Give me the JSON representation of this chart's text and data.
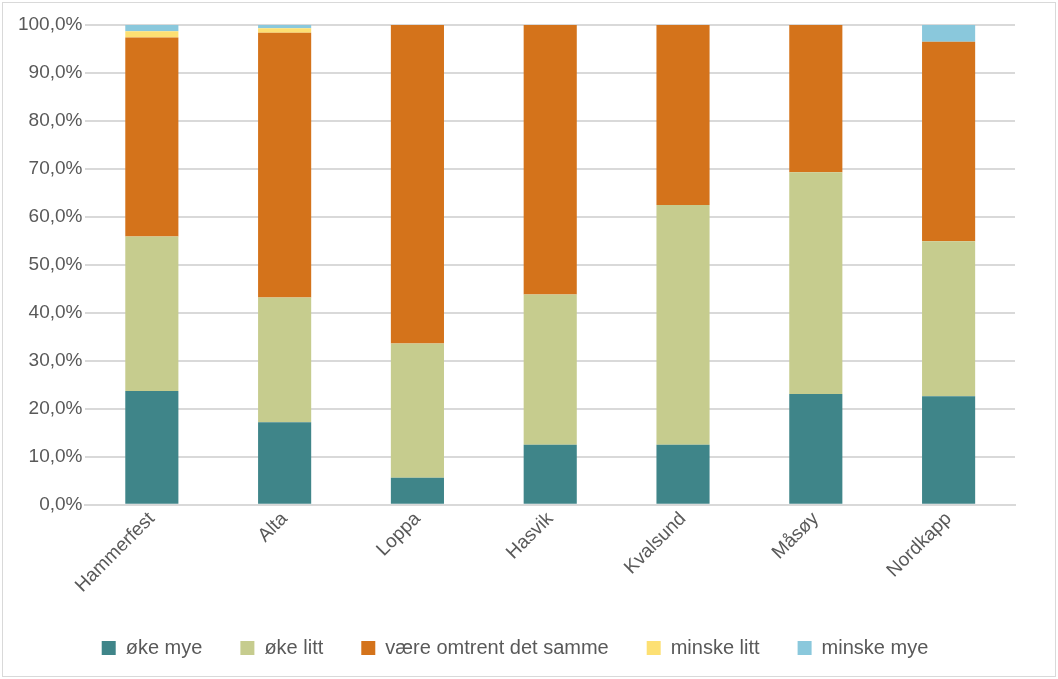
{
  "chart_data": {
    "type": "bar",
    "stacked": true,
    "categories": [
      "Hammerfest",
      "Alta",
      "Loppa",
      "Hasvik",
      "Kvalsund",
      "Måsøy",
      "Nordkapp"
    ],
    "series": [
      {
        "name": "øke mye",
        "color": "#3f8589",
        "values": [
          23.7,
          17.2,
          5.6,
          12.5,
          12.5,
          23.1,
          22.6
        ]
      },
      {
        "name": "øke litt",
        "color": "#c6cc8e",
        "values": [
          32.2,
          26.0,
          28.0,
          31.3,
          50.0,
          46.2,
          32.3
        ]
      },
      {
        "name": "være omtrent det samme",
        "color": "#d4731b",
        "values": [
          41.5,
          55.2,
          66.4,
          56.2,
          37.5,
          30.7,
          41.6
        ]
      },
      {
        "name": "minske litt",
        "color": "#fde073",
        "values": [
          1.3,
          0.9,
          0,
          0,
          0,
          0,
          0
        ]
      },
      {
        "name": "minske mye",
        "color": "#8ac8dc",
        "values": [
          1.3,
          0.7,
          0,
          0,
          0,
          0,
          3.5
        ]
      }
    ],
    "ylim": [
      0,
      100
    ],
    "yticks": [
      {
        "value": 0,
        "label": "0,0%"
      },
      {
        "value": 10,
        "label": "10,0%"
      },
      {
        "value": 20,
        "label": "20,0%"
      },
      {
        "value": 30,
        "label": "30,0%"
      },
      {
        "value": 40,
        "label": "40,0%"
      },
      {
        "value": 50,
        "label": "50,0%"
      },
      {
        "value": 60,
        "label": "60,0%"
      },
      {
        "value": 70,
        "label": "70,0%"
      },
      {
        "value": 80,
        "label": "80,0%"
      },
      {
        "value": 90,
        "label": "90,0%"
      },
      {
        "value": 100,
        "label": "100,0%"
      }
    ],
    "grid": "y",
    "legend": "bottom"
  }
}
